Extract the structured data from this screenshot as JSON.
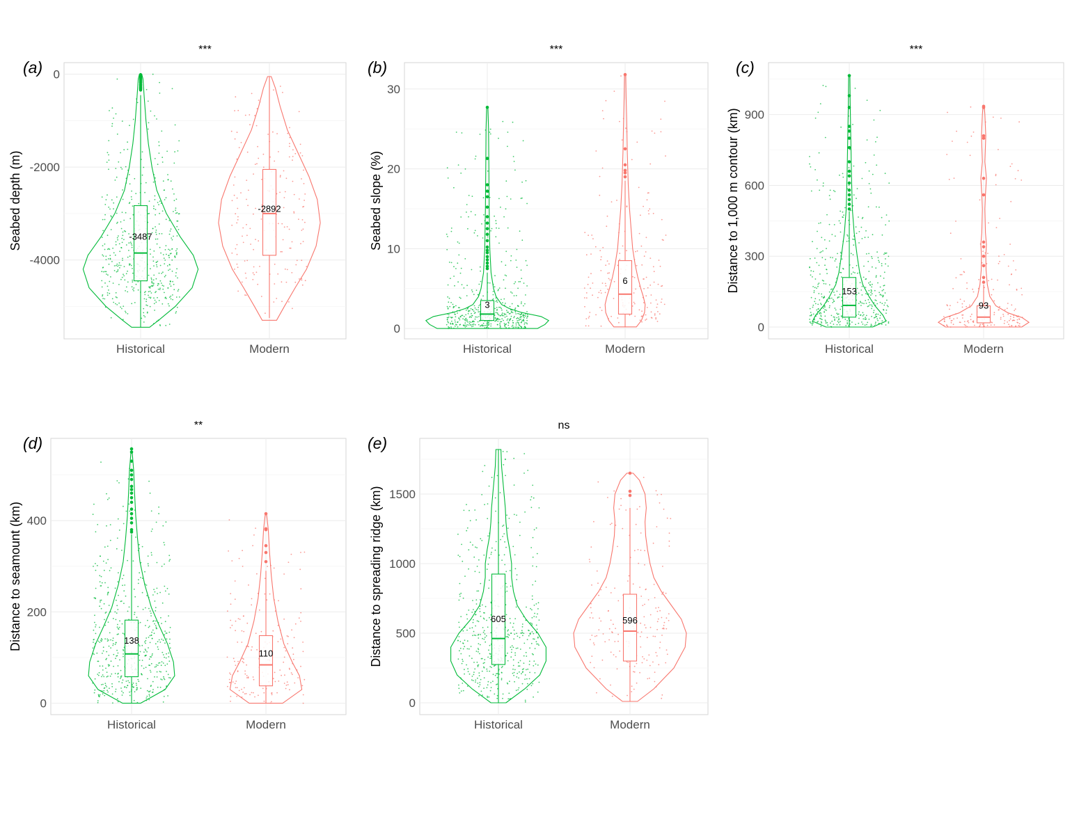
{
  "group_colors": {
    "Historical": "#00ba38",
    "Modern": "#f8766d"
  },
  "chart_data": [
    {
      "panel": "(a)",
      "type": "violin",
      "title": "***",
      "ylabel": "Seabed depth (m)",
      "categories": [
        "Historical",
        "Modern"
      ],
      "ylim": [
        -5700,
        250
      ],
      "yticks": [
        0,
        -2000,
        -4000
      ],
      "grid": true,
      "series": [
        {
          "name": "Historical",
          "box": {
            "min": -5450,
            "q1": -4450,
            "median": -3850,
            "q3": -2830,
            "max": -450
          },
          "mean_label": "-3487",
          "violin": [
            [
              -5450,
              0.15
            ],
            [
              -5300,
              0.3
            ],
            [
              -5000,
              0.58
            ],
            [
              -4600,
              0.86
            ],
            [
              -4200,
              0.96
            ],
            [
              -3900,
              0.88
            ],
            [
              -3500,
              0.66
            ],
            [
              -3000,
              0.43
            ],
            [
              -2500,
              0.27
            ],
            [
              -2000,
              0.19
            ],
            [
              -1500,
              0.13
            ],
            [
              -1000,
              0.09
            ],
            [
              -500,
              0.06
            ],
            [
              -100,
              0.04
            ],
            [
              0,
              0.02
            ]
          ],
          "outliers": [
            -10,
            -30,
            -60,
            -90,
            -120,
            -150,
            -180,
            -220,
            -250,
            -280,
            -300,
            -320,
            -340
          ],
          "n_jitter": 520
        },
        {
          "name": "Modern",
          "box": {
            "min": -5250,
            "q1": -3900,
            "median": -3000,
            "q3": -2050,
            "max": -50
          },
          "mean_label": "-2892",
          "violin": [
            [
              -5300,
              0.12
            ],
            [
              -5000,
              0.25
            ],
            [
              -4600,
              0.43
            ],
            [
              -4200,
              0.62
            ],
            [
              -3700,
              0.78
            ],
            [
              -3200,
              0.85
            ],
            [
              -2700,
              0.8
            ],
            [
              -2200,
              0.66
            ],
            [
              -1700,
              0.48
            ],
            [
              -1200,
              0.3
            ],
            [
              -700,
              0.18
            ],
            [
              -300,
              0.1
            ],
            [
              -50,
              0.03
            ]
          ],
          "outliers": [],
          "n_jitter": 190
        }
      ]
    },
    {
      "panel": "(b)",
      "type": "violin",
      "title": "***",
      "ylabel": "Seabed slope (%)",
      "categories": [
        "Historical",
        "Modern"
      ],
      "ylim": [
        -1.3,
        33.3
      ],
      "yticks": [
        0,
        10,
        20,
        30
      ],
      "grid": true,
      "series": [
        {
          "name": "Historical",
          "box": {
            "min": 0.1,
            "q1": 1.0,
            "median": 1.8,
            "q3": 3.5,
            "max": 7.0
          },
          "mean_label": "3",
          "violin": [
            [
              0.0,
              0.8
            ],
            [
              0.5,
              0.92
            ],
            [
              1.0,
              0.98
            ],
            [
              1.5,
              0.86
            ],
            [
              2.0,
              0.55
            ],
            [
              2.5,
              0.35
            ],
            [
              3.0,
              0.23
            ],
            [
              4.0,
              0.14
            ],
            [
              5.0,
              0.1
            ],
            [
              7.0,
              0.06
            ],
            [
              10.0,
              0.04
            ],
            [
              15.0,
              0.03
            ],
            [
              20.0,
              0.025
            ],
            [
              25.0,
              0.02
            ],
            [
              27.7,
              0.01
            ]
          ],
          "outliers": [
            7.5,
            7.8,
            8.2,
            8.6,
            9.0,
            9.5,
            9.8,
            10.2,
            11.0,
            11.8,
            12.5,
            13.2,
            14.0,
            15.2,
            16.5,
            17.2,
            18.0,
            21.3,
            27.7
          ],
          "n_jitter": 520
        },
        {
          "name": "Modern",
          "box": {
            "min": 0.2,
            "q1": 1.8,
            "median": 4.3,
            "q3": 8.5,
            "max": 18.5
          },
          "mean_label": "6",
          "violin": [
            [
              0.2,
              0.18
            ],
            [
              1.0,
              0.26
            ],
            [
              2.0,
              0.31
            ],
            [
              3.0,
              0.32
            ],
            [
              4.0,
              0.29
            ],
            [
              5.0,
              0.25
            ],
            [
              6.5,
              0.2
            ],
            [
              8.0,
              0.16
            ],
            [
              10.0,
              0.12
            ],
            [
              12.0,
              0.1
            ],
            [
              15.0,
              0.07
            ],
            [
              18.0,
              0.05
            ],
            [
              22.0,
              0.035
            ],
            [
              26.0,
              0.025
            ],
            [
              29.0,
              0.015
            ],
            [
              31.8,
              0.01
            ]
          ],
          "outliers": [
            19.0,
            19.5,
            19.8,
            20.5,
            22.5,
            31.8
          ],
          "n_jitter": 190
        }
      ]
    },
    {
      "panel": "(c)",
      "type": "violin",
      "title": "***",
      "ylabel": "Distance to 1,000 m contour (km)",
      "categories": [
        "Historical",
        "Modern"
      ],
      "ylim": [
        -50,
        1120
      ],
      "yticks": [
        0,
        300,
        600,
        900
      ],
      "grid": true,
      "series": [
        {
          "name": "Historical",
          "box": {
            "min": 0,
            "q1": 42,
            "median": 92,
            "q3": 210,
            "max": 490
          },
          "mean_label": "153",
          "violin": [
            [
              0,
              0.38
            ],
            [
              25,
              0.6
            ],
            [
              50,
              0.55
            ],
            [
              90,
              0.42
            ],
            [
              130,
              0.32
            ],
            [
              180,
              0.22
            ],
            [
              230,
              0.17
            ],
            [
              300,
              0.13
            ],
            [
              400,
              0.08
            ],
            [
              500,
              0.05
            ],
            [
              650,
              0.035
            ],
            [
              800,
              0.025
            ],
            [
              950,
              0.015
            ],
            [
              1065,
              0.01
            ]
          ],
          "outliers": [
            500,
            520,
            540,
            560,
            580,
            610,
            640,
            660,
            700,
            760,
            800,
            830,
            850,
            930,
            980,
            1065
          ],
          "n_jitter": 520
        },
        {
          "name": "Modern",
          "box": {
            "min": 0,
            "q1": 18,
            "median": 42,
            "q3": 90,
            "max": 180
          },
          "mean_label": "93",
          "violin": [
            [
              0,
              0.62
            ],
            [
              20,
              0.74
            ],
            [
              40,
              0.63
            ],
            [
              60,
              0.4
            ],
            [
              90,
              0.2
            ],
            [
              130,
              0.1
            ],
            [
              180,
              0.06
            ],
            [
              240,
              0.04
            ],
            [
              300,
              0.035
            ],
            [
              350,
              0.045
            ],
            [
              400,
              0.03
            ],
            [
              500,
              0.02
            ],
            [
              560,
              0.03
            ],
            [
              630,
              0.045
            ],
            [
              700,
              0.02
            ],
            [
              810,
              0.035
            ],
            [
              900,
              0.02
            ],
            [
              935,
              0.01
            ]
          ],
          "outliers": [
            190,
            210,
            260,
            300,
            340,
            360,
            560,
            630,
            800,
            810,
            930,
            935
          ],
          "n_jitter": 190
        }
      ]
    },
    {
      "panel": "(d)",
      "type": "violin",
      "title": "**",
      "ylabel": "Distance to seamount (km)",
      "categories": [
        "Historical",
        "Modern"
      ],
      "ylim": [
        -25,
        580
      ],
      "yticks": [
        0,
        200,
        400
      ],
      "grid": true,
      "series": [
        {
          "name": "Historical",
          "box": {
            "min": 0,
            "q1": 58,
            "median": 108,
            "q3": 182,
            "max": 370
          },
          "mean_label": "138",
          "violin": [
            [
              0,
              0.15
            ],
            [
              30,
              0.56
            ],
            [
              60,
              0.72
            ],
            [
              90,
              0.7
            ],
            [
              130,
              0.6
            ],
            [
              170,
              0.46
            ],
            [
              210,
              0.33
            ],
            [
              260,
              0.22
            ],
            [
              310,
              0.14
            ],
            [
              360,
              0.1
            ],
            [
              410,
              0.07
            ],
            [
              460,
              0.05
            ],
            [
              510,
              0.035
            ],
            [
              550,
              0.01
            ]
          ],
          "outliers": [
            375,
            380,
            395,
            405,
            415,
            425,
            440,
            450,
            460,
            468,
            475,
            490,
            500,
            510,
            530,
            550,
            557
          ],
          "n_jitter": 520
        },
        {
          "name": "Modern",
          "box": {
            "min": 0,
            "q1": 38,
            "median": 84,
            "q3": 148,
            "max": 290
          },
          "mean_label": "110",
          "violin": [
            [
              0,
              0.28
            ],
            [
              30,
              0.6
            ],
            [
              60,
              0.56
            ],
            [
              90,
              0.44
            ],
            [
              130,
              0.3
            ],
            [
              180,
              0.2
            ],
            [
              230,
              0.13
            ],
            [
              280,
              0.09
            ],
            [
              330,
              0.06
            ],
            [
              380,
              0.04
            ],
            [
              415,
              0.01
            ]
          ],
          "outliers": [
            310,
            330,
            345,
            380,
            382,
            415
          ],
          "n_jitter": 190
        }
      ]
    },
    {
      "panel": "(e)",
      "type": "violin",
      "title": "ns",
      "ylabel": "Distance to spreading ridge (km)",
      "categories": [
        "Historical",
        "Modern"
      ],
      "ylim": [
        -85,
        1900
      ],
      "yticks": [
        0,
        500,
        1000,
        1500
      ],
      "grid": true,
      "series": [
        {
          "name": "Historical",
          "box": {
            "min": 0,
            "q1": 275,
            "median": 462,
            "q3": 925,
            "max": 1820
          },
          "mean_label": "605",
          "violin": [
            [
              0,
              0.12
            ],
            [
              100,
              0.42
            ],
            [
              200,
              0.66
            ],
            [
              300,
              0.76
            ],
            [
              400,
              0.76
            ],
            [
              500,
              0.63
            ],
            [
              600,
              0.44
            ],
            [
              700,
              0.3
            ],
            [
              800,
              0.24
            ],
            [
              900,
              0.21
            ],
            [
              1000,
              0.21
            ],
            [
              1100,
              0.18
            ],
            [
              1200,
              0.14
            ],
            [
              1300,
              0.12
            ],
            [
              1400,
              0.11
            ],
            [
              1500,
              0.09
            ],
            [
              1600,
              0.07
            ],
            [
              1700,
              0.05
            ],
            [
              1820,
              0.04
            ]
          ],
          "outliers": [],
          "n_jitter": 520
        },
        {
          "name": "Modern",
          "box": {
            "min": 10,
            "q1": 300,
            "median": 515,
            "q3": 780,
            "max": 1400
          },
          "mean_label": "596",
          "violin": [
            [
              10,
              0.12
            ],
            [
              100,
              0.38
            ],
            [
              250,
              0.7
            ],
            [
              400,
              0.88
            ],
            [
              500,
              0.9
            ],
            [
              600,
              0.82
            ],
            [
              700,
              0.66
            ],
            [
              800,
              0.5
            ],
            [
              900,
              0.38
            ],
            [
              1000,
              0.32
            ],
            [
              1100,
              0.28
            ],
            [
              1200,
              0.25
            ],
            [
              1300,
              0.24
            ],
            [
              1400,
              0.26
            ],
            [
              1500,
              0.24
            ],
            [
              1600,
              0.15
            ],
            [
              1650,
              0.05
            ]
          ],
          "outliers": [
            1490,
            1520,
            1650
          ],
          "n_jitter": 190
        }
      ]
    }
  ]
}
